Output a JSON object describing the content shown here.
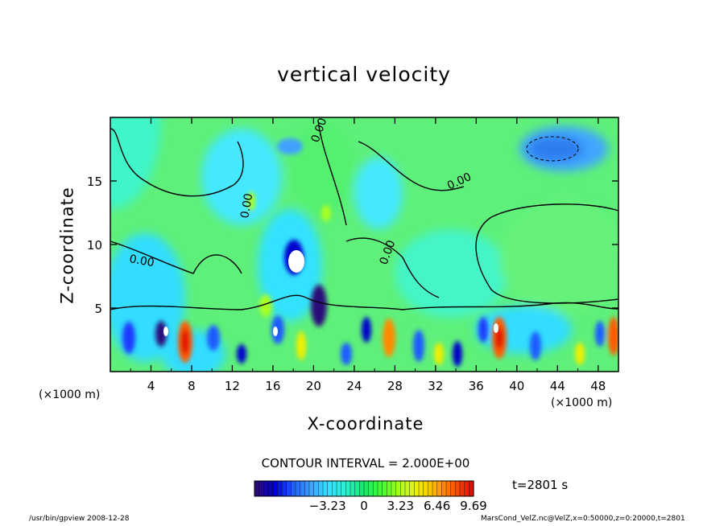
{
  "chart_data": {
    "type": "heatmap",
    "title": "vertical velocity",
    "xlabel": "X-coordinate",
    "ylabel": "Z-coordinate",
    "x_unit_label_left": "(×1000 m)",
    "x_unit_label_right": "(×1000 m)",
    "xlim": [
      0,
      50
    ],
    "ylim": [
      0,
      20
    ],
    "x_ticks": [
      "4",
      "8",
      "12",
      "16",
      "20",
      "24",
      "28",
      "32",
      "36",
      "40",
      "44",
      "48"
    ],
    "x_tick_values": [
      4,
      8,
      12,
      16,
      20,
      24,
      28,
      32,
      36,
      40,
      44,
      48
    ],
    "y_ticks": [
      "5",
      "10",
      "15"
    ],
    "y_tick_values": [
      5,
      10,
      15
    ],
    "contour_labels": [
      "0.00",
      "0.00",
      "0.00",
      "0.00",
      "0.00"
    ],
    "contour_interval_text": "CONTOUR INTERVAL = 2.000E+00",
    "time_text": "t=2801 s",
    "colorbar": {
      "range": [
        -9.69,
        9.69
      ],
      "tick_labels": [
        "−3.23",
        "0",
        "3.23",
        "6.46",
        "9.69"
      ],
      "tick_values": [
        -3.23,
        0,
        3.23,
        6.46,
        9.69
      ],
      "colors": [
        "#2a0a7a",
        "#0000cc",
        "#1e5bff",
        "#3fa0ff",
        "#33e0ff",
        "#28f0d0",
        "#14e666",
        "#44ff33",
        "#aaff22",
        "#f0f000",
        "#ffb000",
        "#ff5a00",
        "#e01000"
      ]
    },
    "grid": false
  },
  "footer": {
    "left": "/usr/bin/gpview   2008-12-28",
    "right": "MarsCond_VelZ.nc@VelZ,x=0:50000,z=0:20000,t=2801"
  }
}
